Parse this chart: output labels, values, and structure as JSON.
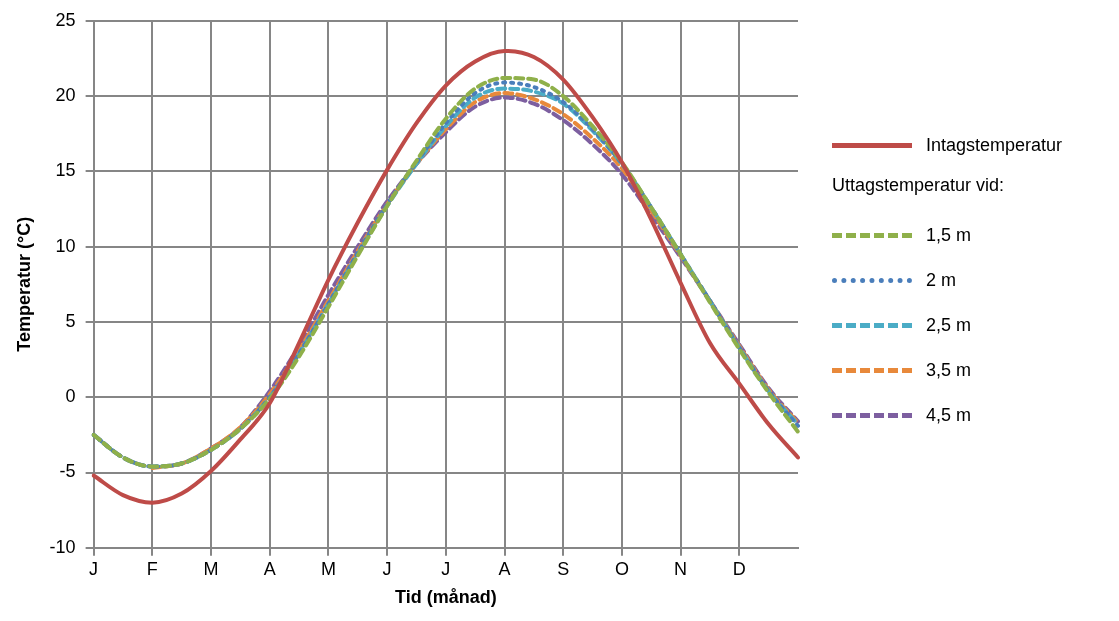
{
  "chart_data": {
    "type": "line",
    "xlabel": "Tid (månad)",
    "ylabel": "Temperatur (°C)",
    "legend_title": "Uttagstemperatur vid:",
    "categories": [
      "J",
      null,
      "F",
      null,
      "M",
      null,
      "A",
      null,
      "M",
      null,
      "J",
      null,
      "J",
      null,
      "A",
      null,
      "S",
      null,
      "O",
      null,
      "N",
      null,
      "D",
      null,
      null
    ],
    "ylim": [
      -10,
      25
    ],
    "yticks": [
      -10,
      -5,
      0,
      5,
      10,
      15,
      20,
      25
    ],
    "grid": true,
    "legend": "right",
    "marker": "none",
    "series": [
      {
        "name": "Intagstemperatur",
        "color": "#be4b48",
        "line_style": "solid",
        "values": [
          -5.2,
          -6.5,
          -7.0,
          -6.4,
          -4.9,
          -2.8,
          -0.4,
          3.6,
          7.8,
          11.6,
          15.1,
          18.2,
          20.7,
          22.3,
          23.0,
          22.6,
          21.1,
          18.6,
          15.6,
          11.8,
          7.6,
          3.6,
          0.9,
          -1.8,
          -4.0
        ]
      },
      {
        "name": "1,5 m",
        "color": "#8fb04a",
        "line_style": "dashed",
        "values": [
          -2.5,
          -4.0,
          -4.6,
          -4.4,
          -3.5,
          -2.1,
          -0.1,
          2.7,
          6.0,
          9.4,
          12.7,
          15.7,
          18.5,
          20.5,
          21.2,
          21.1,
          20.0,
          18.0,
          15.6,
          12.6,
          9.5,
          6.3,
          3.2,
          0.3,
          -2.3
        ]
      },
      {
        "name": "2 m",
        "color": "#4a7ebb",
        "line_style": "dotted",
        "values": [
          -2.5,
          -4.0,
          -4.6,
          -4.4,
          -3.5,
          -2.1,
          0.0,
          2.9,
          6.2,
          9.6,
          12.8,
          15.6,
          18.2,
          20.2,
          20.9,
          20.6,
          19.6,
          17.8,
          15.5,
          12.6,
          9.5,
          6.4,
          3.3,
          0.4,
          -1.9
        ]
      },
      {
        "name": "2,5 m",
        "color": "#4bacc6",
        "line_style": "dashed",
        "values": [
          -2.5,
          -4.0,
          -4.6,
          -4.4,
          -3.5,
          -2.1,
          0.0,
          2.9,
          6.2,
          9.5,
          12.7,
          15.5,
          18.0,
          19.9,
          20.5,
          20.3,
          19.5,
          17.7,
          15.5,
          12.6,
          9.5,
          6.4,
          3.3,
          0.4,
          -1.8
        ]
      },
      {
        "name": "3,5 m",
        "color": "#e8893b",
        "line_style": "dashed",
        "values": [
          null,
          null,
          -4.7,
          -4.4,
          -3.4,
          -2.0,
          0.2,
          3.1,
          6.4,
          9.7,
          12.8,
          15.5,
          17.8,
          19.6,
          20.2,
          19.8,
          18.8,
          17.2,
          15.2,
          12.4,
          9.4,
          6.4,
          3.4,
          0.5,
          -1.7
        ]
      },
      {
        "name": "4,5 m",
        "color": "#7d5fa0",
        "line_style": "dashed",
        "values": [
          -2.5,
          -4.0,
          -4.6,
          -4.4,
          -3.4,
          -2.0,
          0.4,
          3.4,
          6.8,
          10.0,
          13.0,
          15.5,
          17.6,
          19.3,
          19.9,
          19.5,
          18.4,
          16.8,
          14.8,
          12.1,
          9.3,
          6.4,
          3.5,
          0.6,
          -1.6
        ]
      }
    ]
  }
}
